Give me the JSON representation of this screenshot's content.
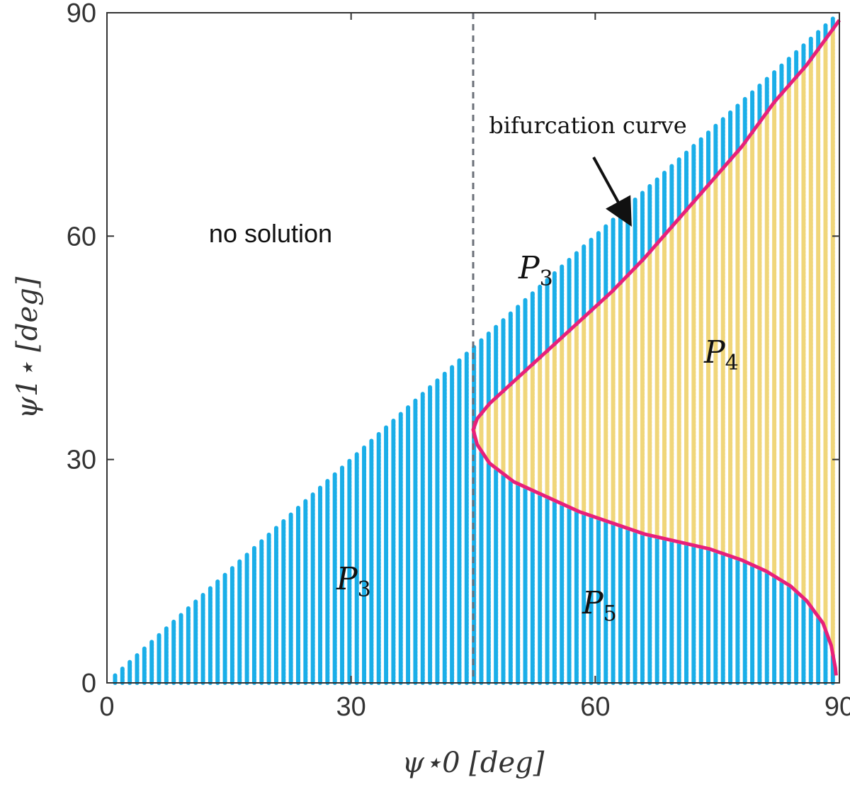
{
  "chart_data": {
    "type": "area",
    "xlabel": "ψ⋆0 [deg]",
    "ylabel": "ψ1⋆ [deg]",
    "xlim": [
      0,
      90
    ],
    "ylim": [
      0,
      90
    ],
    "xticks": [
      0,
      30,
      60,
      90
    ],
    "yticks": [
      0,
      30,
      60,
      90
    ],
    "tick_labels_x": [
      "0",
      "30",
      "60",
      "90"
    ],
    "tick_labels_y": [
      "0",
      "30",
      "60",
      "90"
    ],
    "grid": false,
    "vertical_reference_line": {
      "x": 45,
      "style": "dashed"
    },
    "regions": [
      {
        "label": "P3",
        "color": "#1aaee8"
      },
      {
        "label": "P4",
        "color": "#f0d67a"
      },
      {
        "label": "P5",
        "color": "#1aaee8"
      }
    ],
    "bifurcation_curve": {
      "color": "#e8207a",
      "points": [
        [
          90,
          89
        ],
        [
          86,
          83
        ],
        [
          82,
          78
        ],
        [
          78,
          72
        ],
        [
          74,
          67
        ],
        [
          70,
          62
        ],
        [
          66,
          57
        ],
        [
          62,
          52.5
        ],
        [
          58,
          48.5
        ],
        [
          54,
          44.5
        ],
        [
          50,
          40.5
        ],
        [
          47,
          37.5
        ],
        [
          45.5,
          35.5
        ],
        [
          45,
          34
        ],
        [
          45.5,
          32
        ],
        [
          47,
          29.5
        ],
        [
          50,
          27
        ],
        [
          54,
          25
        ],
        [
          58,
          23
        ],
        [
          62,
          21.5
        ],
        [
          66,
          20
        ],
        [
          70,
          19
        ],
        [
          74,
          18
        ],
        [
          78,
          16.5
        ],
        [
          81,
          15
        ],
        [
          84,
          13
        ],
        [
          86,
          11
        ],
        [
          88,
          8
        ],
        [
          89,
          5
        ],
        [
          89.5,
          2
        ],
        [
          89.6,
          1
        ]
      ]
    },
    "annotations": [
      {
        "text": "no solution"
      },
      {
        "text": "bifurcation curve"
      }
    ],
    "region_labels": [
      {
        "main": "P",
        "sub": "3"
      },
      {
        "main": "P",
        "sub": "3"
      },
      {
        "main": "P",
        "sub": "4"
      },
      {
        "main": "P",
        "sub": "5"
      }
    ]
  }
}
